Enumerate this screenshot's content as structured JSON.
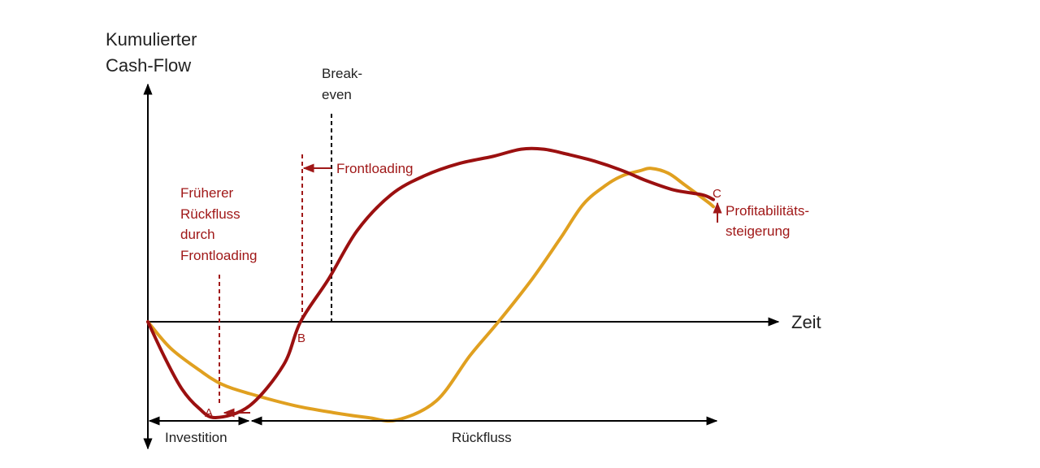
{
  "chart_data": {
    "type": "line",
    "ylabel": [
      "Kumulierter",
      "Cash-Flow"
    ],
    "xlabel": "Zeit",
    "x": [
      0.0,
      0.04,
      0.09,
      0.13,
      0.18,
      0.26,
      0.33,
      0.39,
      0.44,
      0.51,
      0.57,
      0.62,
      0.68,
      0.73,
      0.77,
      0.81,
      0.84,
      0.87,
      0.89,
      0.92,
      0.95,
      0.99,
      1.0
    ],
    "series": [
      {
        "color": "#e0a020",
        "values": [
          0.0,
          -0.11,
          -0.2,
          -0.26,
          -0.3,
          -0.35,
          -0.38,
          -0.4,
          -0.41,
          -0.33,
          -0.14,
          0.0,
          0.18,
          0.35,
          0.49,
          0.57,
          0.61,
          0.63,
          0.64,
          0.62,
          0.57,
          0.5,
          0.48
        ],
        "x": [
          0.0,
          0.04,
          0.09,
          0.13,
          0.18,
          0.26,
          0.33,
          0.39,
          0.44,
          0.51,
          0.57,
          0.62,
          0.68,
          0.73,
          0.77,
          0.81,
          0.84,
          0.87,
          0.89,
          0.92,
          0.95,
          0.99,
          1.0
        ]
      },
      {
        "color": "#9b1010",
        "values": [
          0.0,
          -0.15,
          -0.28,
          -0.36,
          -0.4,
          -0.35,
          -0.18,
          0.0,
          0.18,
          0.38,
          0.53,
          0.61,
          0.66,
          0.69,
          0.72,
          0.72,
          0.7,
          0.67,
          0.63,
          0.59,
          0.55,
          0.53,
          0.51
        ],
        "x": [
          0.0,
          0.03,
          0.06,
          0.09,
          0.12,
          0.18,
          0.24,
          0.27,
          0.32,
          0.37,
          0.43,
          0.49,
          0.55,
          0.61,
          0.66,
          0.7,
          0.74,
          0.79,
          0.84,
          0.88,
          0.93,
          0.98,
          1.0
        ]
      }
    ],
    "annotations": {
      "breakeven": [
        "Break-",
        "even"
      ],
      "frontloading": "Frontloading",
      "frueherer": [
        "Früherer",
        "Rückfluss",
        "durch",
        "Frontloading"
      ],
      "profit": [
        "Profitabilitäts-",
        "steigerung"
      ],
      "point_a": "A",
      "point_b": "B",
      "point_c": "C",
      "investition": "Investition",
      "rueckfluss": "Rückfluss"
    }
  }
}
